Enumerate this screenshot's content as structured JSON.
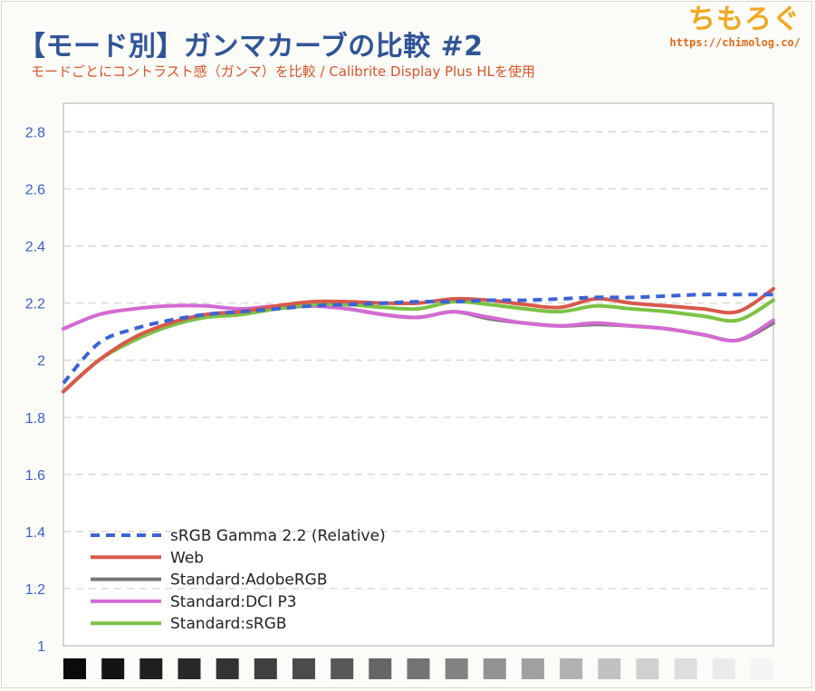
{
  "header": {
    "title": "【モード別】ガンマカーブの比較 #2",
    "subtitle": "モードごとにコントラスト感（ガンマ）を比較 / Calibrite Display Plus HLを使用"
  },
  "logo": {
    "text": "ちもろぐ",
    "url": "https://chimolog.co/"
  },
  "chart_data": {
    "type": "line",
    "ylim": [
      1,
      2.9
    ],
    "yticks": [
      "1",
      "1.2",
      "1.4",
      "1.6",
      "1.8",
      "2",
      "2.2",
      "2.4",
      "2.6",
      "2.8"
    ],
    "x": [
      0,
      5,
      10,
      15,
      20,
      25,
      30,
      35,
      40,
      45,
      50,
      55,
      60,
      65,
      70,
      75,
      80,
      85,
      90,
      95,
      100
    ],
    "grid": true,
    "legend_position": "bottom-left",
    "series": [
      {
        "name": "sRGB Gamma 2.2 (Relative)",
        "color": "#3b63d6",
        "dashed": true,
        "values": [
          1.92,
          2.06,
          2.11,
          2.14,
          2.16,
          2.17,
          2.18,
          2.19,
          2.195,
          2.2,
          2.205,
          2.205,
          2.21,
          2.21,
          2.215,
          2.22,
          2.22,
          2.225,
          2.23,
          2.23,
          2.23
        ]
      },
      {
        "name": "Web",
        "color": "#d9594a",
        "dashed": false,
        "values": [
          1.89,
          2.0,
          2.08,
          2.13,
          2.16,
          2.17,
          2.19,
          2.205,
          2.205,
          2.2,
          2.2,
          2.215,
          2.21,
          2.195,
          2.185,
          2.215,
          2.2,
          2.19,
          2.18,
          2.17,
          2.25
        ]
      },
      {
        "name": "Standard:AdobeRGB",
        "color": "#777777",
        "dashed": false,
        "values": [
          1.89,
          2.0,
          2.07,
          2.12,
          2.15,
          2.16,
          2.18,
          2.19,
          2.18,
          2.16,
          2.15,
          2.17,
          2.145,
          2.13,
          2.12,
          2.125,
          2.12,
          2.11,
          2.09,
          2.07,
          2.13
        ]
      },
      {
        "name": "Standard:DCI P3",
        "color": "#d46ad4",
        "dashed": false,
        "values": [
          2.11,
          2.16,
          2.18,
          2.19,
          2.19,
          2.18,
          2.19,
          2.19,
          2.18,
          2.16,
          2.15,
          2.17,
          2.15,
          2.13,
          2.12,
          2.13,
          2.12,
          2.11,
          2.09,
          2.07,
          2.14
        ]
      },
      {
        "name": "Standard:sRGB",
        "color": "#7cc243",
        "dashed": false,
        "values": [
          1.89,
          2.0,
          2.07,
          2.12,
          2.15,
          2.16,
          2.18,
          2.195,
          2.195,
          2.185,
          2.18,
          2.205,
          2.195,
          2.18,
          2.17,
          2.19,
          2.18,
          2.17,
          2.155,
          2.14,
          2.21
        ]
      }
    ],
    "gray_steps": [
      "#0b0b0b",
      "#141414",
      "#1e1e1e",
      "#282828",
      "#333333",
      "#3f3f3f",
      "#4b4b4b",
      "#585858",
      "#666666",
      "#747474",
      "#838383",
      "#929292",
      "#a1a1a1",
      "#b1b1b1",
      "#c1c1c1",
      "#d0d0d0",
      "#dedede",
      "#ebebeb",
      "#f4f4f4"
    ]
  }
}
